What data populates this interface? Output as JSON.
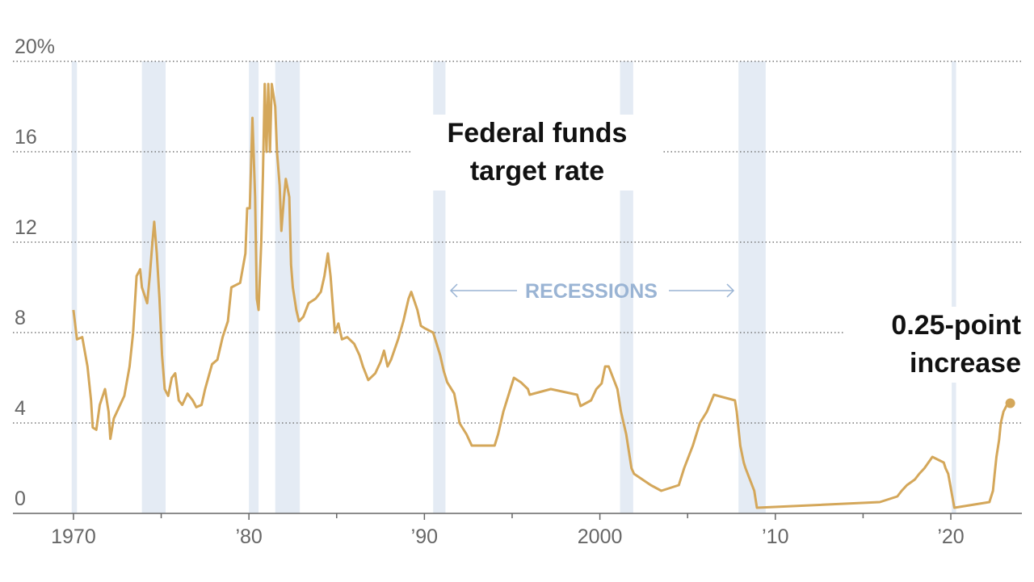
{
  "chart_data": {
    "type": "line",
    "title": "Federal funds target rate",
    "annotation": "0.25-point increase",
    "recession_label": "RECESSIONS",
    "recession_color": "#e4ebf4",
    "recession_label_color": "#9ab4d4",
    "recessions": [
      [
        1969.9,
        1970.2
      ],
      [
        1973.9,
        1975.25
      ],
      [
        1980.0,
        1980.55
      ],
      [
        1981.5,
        1982.9
      ],
      [
        1990.5,
        1991.2
      ],
      [
        2001.15,
        2001.9
      ],
      [
        2007.9,
        2009.45
      ],
      [
        2020.05,
        2020.3
      ]
    ],
    "xlim": [
      1966.55,
      2024.05
    ],
    "ylim": [
      0,
      20
    ],
    "xticks": [
      {
        "value": 1970,
        "label": "1970"
      },
      {
        "value": 1980,
        "label": "’80"
      },
      {
        "value": 1990,
        "label": "’90"
      },
      2000,
      {
        "value": 2010,
        "label": "’10"
      },
      {
        "value": 2020,
        "label": "’20"
      }
    ],
    "x_minor_ticks": [
      1975,
      1985,
      1995,
      2005,
      2015
    ],
    "yticks": [
      0,
      4,
      8,
      12,
      16,
      {
        "value": 20,
        "label": "20%"
      }
    ],
    "grid": true,
    "series": [
      {
        "name": "Federal funds target rate",
        "color": "#d4a75a",
        "x": [
          1970.0,
          1970.2,
          1970.5,
          1970.8,
          1971.0,
          1971.1,
          1971.3,
          1971.5,
          1971.8,
          1972.0,
          1972.1,
          1972.3,
          1972.6,
          1972.9,
          1973.2,
          1973.4,
          1973.6,
          1973.8,
          1973.9,
          1974.2,
          1974.35,
          1974.5,
          1974.6,
          1974.75,
          1974.9,
          1975.05,
          1975.2,
          1975.4,
          1975.6,
          1975.8,
          1976.0,
          1976.2,
          1976.5,
          1976.8,
          1977.0,
          1977.3,
          1977.5,
          1977.9,
          1978.2,
          1978.5,
          1978.8,
          1979.0,
          1979.5,
          1979.8,
          1979.9,
          1980.05,
          1980.2,
          1980.35,
          1980.45,
          1980.55,
          1980.7,
          1980.8,
          1980.9,
          1981.0,
          1981.1,
          1981.2,
          1981.3,
          1981.5,
          1981.6,
          1981.75,
          1981.85,
          1982.0,
          1982.1,
          1982.3,
          1982.4,
          1982.5,
          1982.7,
          1982.85,
          1983.1,
          1983.4,
          1983.8,
          1984.1,
          1984.3,
          1984.5,
          1984.65,
          1984.8,
          1984.9,
          1985.1,
          1985.3,
          1985.6,
          1986.0,
          1986.3,
          1986.5,
          1986.8,
          1987.2,
          1987.5,
          1987.7,
          1987.9,
          1988.1,
          1988.5,
          1988.8,
          1989.1,
          1989.25,
          1989.6,
          1989.8,
          1990.0,
          1990.5,
          1990.9,
          1991.1,
          1991.3,
          1991.7,
          1991.9,
          1992.0,
          1992.4,
          1992.7,
          1994.0,
          1994.2,
          1994.5,
          1994.9,
          1995.1,
          1995.5,
          1995.9,
          1996.0,
          1997.2,
          1998.7,
          1998.8,
          1998.9,
          1999.5,
          1999.8,
          2000.1,
          2000.3,
          2000.5,
          2001.0,
          2001.2,
          2001.5,
          2001.8,
          2001.95,
          2002.9,
          2003.5,
          2004.5,
          2004.8,
          2005.3,
          2005.7,
          2006.1,
          2006.5,
          2007.7,
          2007.8,
          2008.0,
          2008.2,
          2008.3,
          2008.8,
          2008.95,
          2015.95,
          2016.95,
          2017.2,
          2017.5,
          2017.95,
          2018.2,
          2018.5,
          2018.95,
          2019.6,
          2019.7,
          2019.85,
          2020.2,
          2022.2,
          2022.4,
          2022.5,
          2022.6,
          2022.75,
          2022.85,
          2023.0,
          2023.25
        ],
        "values": [
          9.0,
          7.7,
          7.8,
          6.5,
          5.0,
          3.8,
          3.7,
          4.8,
          5.5,
          4.5,
          3.3,
          4.2,
          4.7,
          5.2,
          6.5,
          8.0,
          10.5,
          10.8,
          10.0,
          9.3,
          10.5,
          12.0,
          12.9,
          11.5,
          9.5,
          7.0,
          5.5,
          5.2,
          6.0,
          6.2,
          5.0,
          4.8,
          5.3,
          5.0,
          4.7,
          4.8,
          5.5,
          6.6,
          6.8,
          7.8,
          8.5,
          10.0,
          10.2,
          11.5,
          13.5,
          13.5,
          17.5,
          14.0,
          9.5,
          9.0,
          12.0,
          15.0,
          19.0,
          16.0,
          19.0,
          16.0,
          19.0,
          18.0,
          16.0,
          14.5,
          12.5,
          14.0,
          14.8,
          14.0,
          11.0,
          10.0,
          9.0,
          8.5,
          8.7,
          9.3,
          9.5,
          9.8,
          10.5,
          11.5,
          10.5,
          9.0,
          8.0,
          8.4,
          7.7,
          7.8,
          7.5,
          7.0,
          6.5,
          5.9,
          6.2,
          6.7,
          7.2,
          6.5,
          6.8,
          7.7,
          8.5,
          9.5,
          9.8,
          9.0,
          8.3,
          8.2,
          8.0,
          7.0,
          6.3,
          5.8,
          5.3,
          4.5,
          4.0,
          3.5,
          3.0,
          3.0,
          3.5,
          4.5,
          5.5,
          6.0,
          5.8,
          5.5,
          5.25,
          5.5,
          5.25,
          5.0,
          4.75,
          5.0,
          5.5,
          5.75,
          6.5,
          6.5,
          5.5,
          4.5,
          3.5,
          2.0,
          1.75,
          1.25,
          1.0,
          1.25,
          2.0,
          3.0,
          4.0,
          4.5,
          5.25,
          5.0,
          4.5,
          3.0,
          2.25,
          2.0,
          1.0,
          0.25,
          0.5,
          0.75,
          1.0,
          1.25,
          1.5,
          1.75,
          2.0,
          2.5,
          2.25,
          2.0,
          1.75,
          0.25,
          0.5,
          1.0,
          1.75,
          2.5,
          3.25,
          4.0,
          4.5,
          4.875
        ]
      }
    ]
  }
}
